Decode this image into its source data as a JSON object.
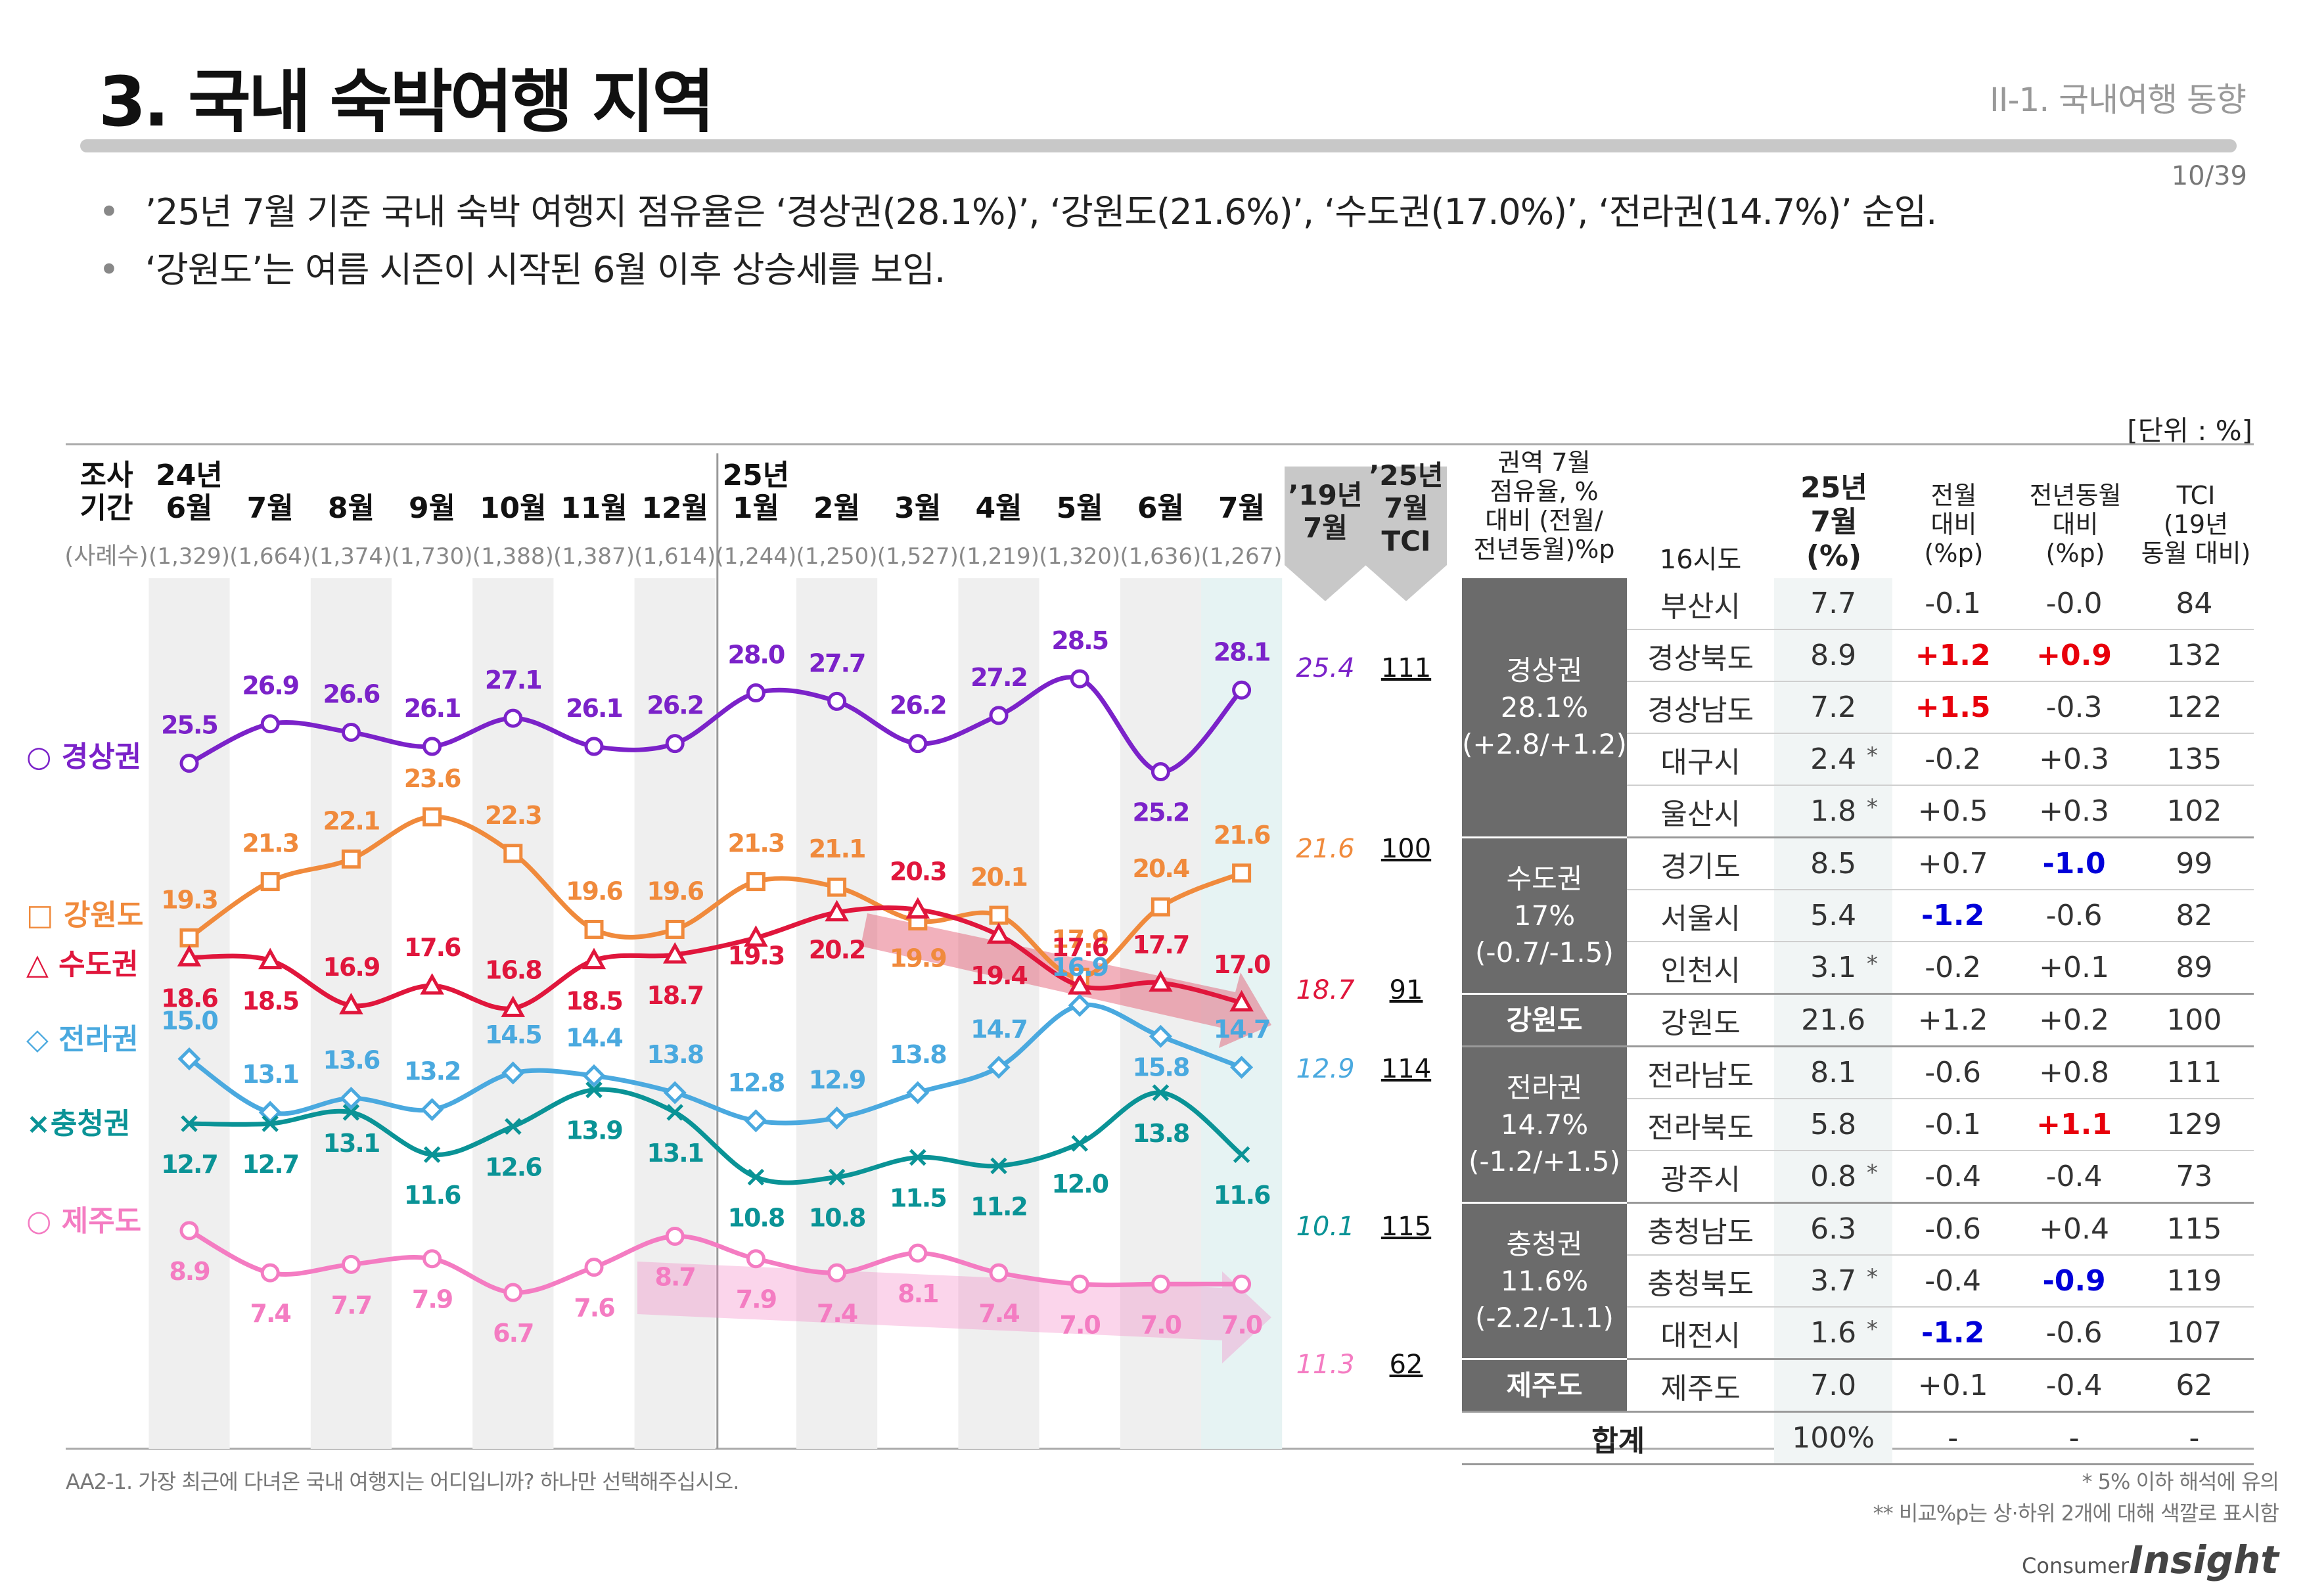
{
  "header": {
    "title": "3. 국내 숙박여행 지역",
    "section": "II-1. 국내여행 동향",
    "page": "10/39"
  },
  "bullets": [
    "’25년 7월 기준 국내 숙박 여행지 점유율은 ‘경상권(28.1%)’, ‘강원도(21.6%)’, ‘수도권(17.0%)’, ‘전라권(14.7%)’ 순임.",
    "‘강원도’는 여름 시즌이 시작된 6월 이후 상승세를 보임."
  ],
  "unit": "[단위 : %]",
  "chart_data": {
    "type": "line",
    "row_label_top": "조사\n기간",
    "row_label_sample": "(사례수)",
    "categories": [
      "24년\n6월",
      "7월",
      "8월",
      "9월",
      "10월",
      "11월",
      "12월",
      "25년\n1월",
      "2월",
      "3월",
      "4월",
      "5월",
      "6월",
      "7월"
    ],
    "sample_sizes": [
      "(1,329)",
      "(1,664)",
      "(1,374)",
      "(1,730)",
      "(1,388)",
      "(1,387)",
      "(1,614)",
      "(1,244)",
      "(1,250)",
      "(1,527)",
      "(1,219)",
      "(1,320)",
      "(1,636)",
      "(1,267)"
    ],
    "ref_headers": [
      "’19년\n7월",
      "’25년\n7월\nTCI"
    ],
    "ylim": [
      0,
      30
    ],
    "series": [
      {
        "name": "○ 경상권",
        "color": "#7b22c9",
        "marker": "circle",
        "values": [
          25.5,
          26.9,
          26.6,
          26.1,
          27.1,
          26.1,
          26.2,
          28.0,
          27.7,
          26.2,
          27.2,
          28.5,
          25.2,
          28.1
        ],
        "ref_2019": "25.4",
        "tci": "111"
      },
      {
        "name": "□ 강원도",
        "color": "#f08a3c",
        "marker": "square",
        "values": [
          19.3,
          21.3,
          22.1,
          23.6,
          22.3,
          19.6,
          19.6,
          21.3,
          21.1,
          19.9,
          20.1,
          17.9,
          20.4,
          21.6
        ],
        "ref_2019": "21.6",
        "tci": "100"
      },
      {
        "name": "△ 수도권",
        "color": "#e0163c",
        "marker": "triangle",
        "values": [
          18.6,
          18.5,
          16.9,
          17.6,
          16.8,
          18.5,
          18.7,
          19.3,
          20.2,
          20.3,
          19.4,
          17.6,
          17.7,
          17.0
        ],
        "ref_2019": "18.7",
        "tci": "91"
      },
      {
        "name": "◇ 전라권",
        "color": "#4aa9df",
        "marker": "diamond",
        "values": [
          15.0,
          13.1,
          13.6,
          13.2,
          14.5,
          14.4,
          13.8,
          12.8,
          12.9,
          13.8,
          14.7,
          16.9,
          15.8,
          14.7
        ],
        "ref_2019": "12.9",
        "tci": "114"
      },
      {
        "name": "×충청권",
        "color": "#0a9396",
        "marker": "x",
        "values": [
          12.7,
          12.7,
          13.1,
          11.6,
          12.6,
          13.9,
          13.1,
          10.8,
          10.8,
          11.5,
          11.2,
          12.0,
          13.8,
          11.6
        ],
        "ref_2019": "10.1",
        "tci": "115"
      },
      {
        "name": "○ 제주도",
        "color": "#f47cc2",
        "marker": "circle",
        "values": [
          8.9,
          7.4,
          7.7,
          7.9,
          6.7,
          7.6,
          8.7,
          7.9,
          7.4,
          8.1,
          7.4,
          7.0,
          7.0,
          7.0
        ],
        "ref_2019": "11.3",
        "tci": "62"
      }
    ]
  },
  "table": {
    "headers": {
      "region": "권역 7월\n점유율, %\n대비 (전월/\n전년동월)%p",
      "city": "16시도",
      "pct": "25년\n7월\n(%)",
      "mom": "전월\n대비\n(%p)",
      "yoy": "전년동월\n대비\n(%p)",
      "tci": "TCI\n(19년\n동월 대비)"
    },
    "groups": [
      {
        "region": "경상권\n28.1%\n(+2.8/+1.2)",
        "rows": [
          {
            "city": "부산시",
            "pct": "7.7",
            "ast": "",
            "mom": "-0.1",
            "mom_c": "",
            "yoy": "-0.0",
            "yoy_c": "",
            "tci": "84"
          },
          {
            "city": "경상북도",
            "pct": "8.9",
            "ast": "",
            "mom": "+1.2",
            "mom_c": "red",
            "yoy": "+0.9",
            "yoy_c": "red",
            "tci": "132"
          },
          {
            "city": "경상남도",
            "pct": "7.2",
            "ast": "",
            "mom": "+1.5",
            "mom_c": "red",
            "yoy": "-0.3",
            "yoy_c": "",
            "tci": "122"
          },
          {
            "city": "대구시",
            "pct": "2.4",
            "ast": "*",
            "mom": "-0.2",
            "mom_c": "",
            "yoy": "+0.3",
            "yoy_c": "",
            "tci": "135"
          },
          {
            "city": "울산시",
            "pct": "1.8",
            "ast": "*",
            "mom": "+0.5",
            "mom_c": "",
            "yoy": "+0.3",
            "yoy_c": "",
            "tci": "102"
          }
        ]
      },
      {
        "region": "수도권\n17%\n(-0.7/-1.5)",
        "rows": [
          {
            "city": "경기도",
            "pct": "8.5",
            "ast": "",
            "mom": "+0.7",
            "mom_c": "",
            "yoy": "-1.0",
            "yoy_c": "blue",
            "tci": "99"
          },
          {
            "city": "서울시",
            "pct": "5.4",
            "ast": "",
            "mom": "-1.2",
            "mom_c": "blue",
            "yoy": "-0.6",
            "yoy_c": "",
            "tci": "82"
          },
          {
            "city": "인천시",
            "pct": "3.1",
            "ast": "*",
            "mom": "-0.2",
            "mom_c": "",
            "yoy": "+0.1",
            "yoy_c": "",
            "tci": "89"
          }
        ]
      },
      {
        "region": "강원도",
        "rows": [
          {
            "city": "강원도",
            "pct": "21.6",
            "ast": "",
            "mom": "+1.2",
            "mom_c": "",
            "yoy": "+0.2",
            "yoy_c": "",
            "tci": "100"
          }
        ]
      },
      {
        "region": "전라권\n14.7%\n(-1.2/+1.5)",
        "rows": [
          {
            "city": "전라남도",
            "pct": "8.1",
            "ast": "",
            "mom": "-0.6",
            "mom_c": "",
            "yoy": "+0.8",
            "yoy_c": "",
            "tci": "111"
          },
          {
            "city": "전라북도",
            "pct": "5.8",
            "ast": "",
            "mom": "-0.1",
            "mom_c": "",
            "yoy": "+1.1",
            "yoy_c": "red",
            "tci": "129"
          },
          {
            "city": "광주시",
            "pct": "0.8",
            "ast": "*",
            "mom": "-0.4",
            "mom_c": "",
            "yoy": "-0.4",
            "yoy_c": "",
            "tci": "73"
          }
        ]
      },
      {
        "region": "충청권\n11.6%\n(-2.2/-1.1)",
        "rows": [
          {
            "city": "충청남도",
            "pct": "6.3",
            "ast": "",
            "mom": "-0.6",
            "mom_c": "",
            "yoy": "+0.4",
            "yoy_c": "",
            "tci": "115"
          },
          {
            "city": "충청북도",
            "pct": "3.7",
            "ast": "*",
            "mom": "-0.4",
            "mom_c": "",
            "yoy": "-0.9",
            "yoy_c": "blue",
            "tci": "119"
          },
          {
            "city": "대전시",
            "pct": "1.6",
            "ast": "*",
            "mom": "-1.2",
            "mom_c": "blue",
            "yoy": "-0.6",
            "yoy_c": "",
            "tci": "107"
          }
        ]
      },
      {
        "region": "제주도",
        "rows": [
          {
            "city": "제주도",
            "pct": "7.0",
            "ast": "",
            "mom": "+0.1",
            "mom_c": "",
            "yoy": "-0.4",
            "yoy_c": "",
            "tci": "62"
          }
        ]
      }
    ],
    "total": {
      "label": "합계",
      "pct": "100%",
      "mom": "-",
      "yoy": "-",
      "tci": "-"
    }
  },
  "footnotes": {
    "question": "AA2-1. 가장 최근에 다녀온 국내 여행지는 어디입니까? 하나만 선택해주십시오.",
    "note1": "* 5% 이하 해석에 유의",
    "note2": "** 비교%p는 상·하위 2개에 대해 색깔로 표시함"
  },
  "logo": {
    "line1": "Consumer",
    "line2": "Insight"
  }
}
